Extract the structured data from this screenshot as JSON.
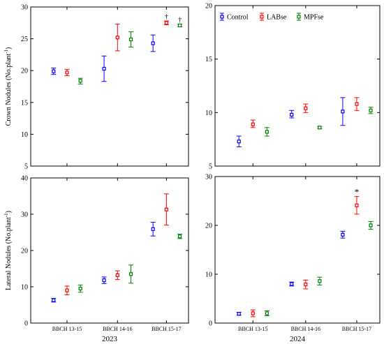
{
  "chart_data": [
    {
      "type": "scatter",
      "ylabel": "Crown Nodules (No.plant",
      "ylabel_sup": "-1",
      "ylabel_close": ")",
      "ylim": [
        5,
        30
      ],
      "yticks": [
        5,
        10,
        15,
        20,
        25,
        30
      ],
      "categories": [
        "BBCH 13-15",
        "BBCH 14-16",
        "BBCH 15-17"
      ],
      "show_categories": false,
      "year": "",
      "series": [
        {
          "name": "Control",
          "means": [
            19.9,
            20.3,
            24.3
          ],
          "lo": [
            19.4,
            18.3,
            23.0
          ],
          "hi": [
            20.4,
            22.3,
            25.6
          ]
        },
        {
          "name": "LABse",
          "means": [
            19.7,
            25.2,
            27.5
          ],
          "lo": [
            19.2,
            23.1,
            27.2
          ],
          "hi": [
            20.2,
            27.3,
            27.8
          ]
        },
        {
          "name": "MPFse",
          "means": [
            18.4,
            24.9,
            27.1
          ],
          "lo": [
            17.9,
            23.7,
            26.9
          ],
          "hi": [
            18.8,
            26.1,
            27.3
          ]
        }
      ],
      "annotations": [
        {
          "category_index": 2,
          "series_index": 1,
          "text": "†"
        },
        {
          "category_index": 2,
          "series_index": 2,
          "text": "†"
        }
      ]
    },
    {
      "type": "scatter",
      "ylim": [
        5,
        20
      ],
      "yticks": [
        5,
        10,
        15,
        20
      ],
      "categories": [
        "BBCH 13-15",
        "BBCH 14-16",
        "BBCH 15-17"
      ],
      "show_categories": false,
      "year": "",
      "legend": [
        "Control",
        "LABse",
        "MPFse"
      ],
      "legend_placement": "top-left",
      "series": [
        {
          "name": "Control",
          "means": [
            7.3,
            9.8,
            10.1
          ],
          "lo": [
            6.8,
            9.5,
            8.8
          ],
          "hi": [
            7.8,
            10.2,
            11.4
          ]
        },
        {
          "name": "LABse",
          "means": [
            8.9,
            10.4,
            10.8
          ],
          "lo": [
            8.6,
            10.0,
            10.2
          ],
          "hi": [
            9.3,
            10.8,
            11.4
          ]
        },
        {
          "name": "MPFse",
          "means": [
            8.2,
            8.6,
            10.2
          ],
          "lo": [
            7.8,
            8.5,
            9.9
          ],
          "hi": [
            8.6,
            8.7,
            10.5
          ]
        }
      ],
      "annotations": []
    },
    {
      "type": "scatter",
      "ylabel": "Lateral Nodules (No.plant",
      "ylabel_sup": "-1",
      "ylabel_close": ")",
      "ylim": [
        0,
        40
      ],
      "yticks": [
        0,
        10,
        20,
        30,
        40
      ],
      "categories": [
        "BBCH 13-15",
        "BBCH 14-16",
        "BBCH 15-17"
      ],
      "show_categories": true,
      "year": "2023",
      "series": [
        {
          "name": "Control",
          "means": [
            6.3,
            11.8,
            25.9
          ],
          "lo": [
            5.8,
            10.9,
            24.0
          ],
          "hi": [
            6.8,
            12.7,
            27.8
          ]
        },
        {
          "name": "LABse",
          "means": [
            9.0,
            13.2,
            31.3
          ],
          "lo": [
            7.8,
            12.0,
            27.0
          ],
          "hi": [
            10.2,
            14.4,
            35.6
          ]
        },
        {
          "name": "MPFse",
          "means": [
            9.5,
            13.5,
            23.9
          ],
          "lo": [
            8.5,
            11.0,
            23.3
          ],
          "hi": [
            10.5,
            16.0,
            24.5
          ]
        }
      ],
      "annotations": []
    },
    {
      "type": "scatter",
      "ylim": [
        0,
        30
      ],
      "yticks": [
        0,
        10,
        20,
        30
      ],
      "categories": [
        "BBCH 13-15",
        "BBCH 14-16",
        "BBCH 15-17"
      ],
      "show_categories": true,
      "year": "2024",
      "series": [
        {
          "name": "Control",
          "means": [
            1.9,
            8.0,
            18.1
          ],
          "lo": [
            1.6,
            7.6,
            17.4
          ],
          "hi": [
            2.2,
            8.4,
            18.8
          ]
        },
        {
          "name": "LABse",
          "means": [
            2.0,
            7.9,
            24.1
          ],
          "lo": [
            1.3,
            7.0,
            22.3
          ],
          "hi": [
            2.7,
            8.8,
            25.9
          ]
        },
        {
          "name": "MPFse",
          "means": [
            2.0,
            8.6,
            20.0
          ],
          "lo": [
            1.5,
            7.8,
            19.2
          ],
          "hi": [
            2.5,
            9.4,
            20.8
          ]
        }
      ],
      "annotations": [
        {
          "category_index": 2,
          "series_index": 1,
          "text": "*"
        }
      ]
    }
  ],
  "colors": {
    "Control": "#0000ff",
    "LABse": "#ff0000",
    "MPFse": "#008000"
  }
}
